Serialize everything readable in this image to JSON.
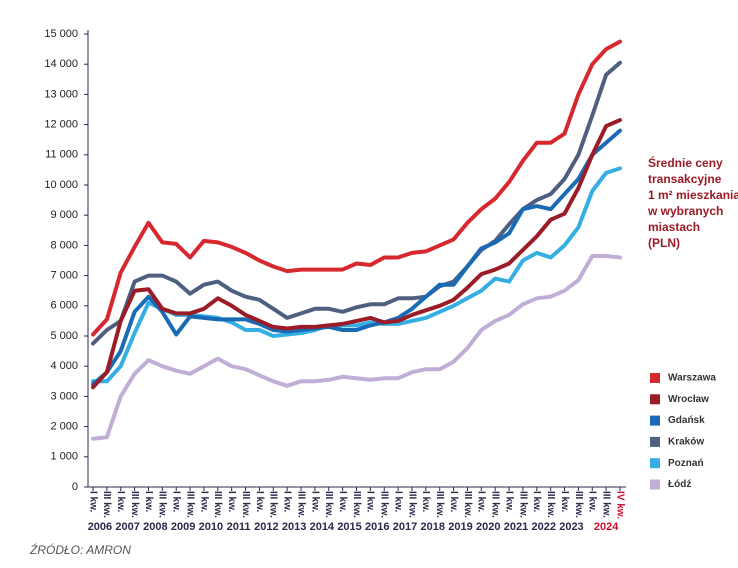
{
  "chart_data": {
    "type": "line",
    "categories": [
      "I kw.",
      "III kw.",
      "I kw.",
      "III kw.",
      "I kw.",
      "III kw.",
      "I kw.",
      "III kw.",
      "I kw.",
      "III kw.",
      "I kw.",
      "III kw.",
      "I kw.",
      "III kw.",
      "I kw.",
      "III kw.",
      "I kw.",
      "III kw.",
      "I kw.",
      "III kw.",
      "I kw.",
      "III kw.",
      "I kw.",
      "III kw.",
      "I kw.",
      "III kw.",
      "I kw.",
      "III kw.",
      "I kw.",
      "III kw.",
      "I kw.",
      "III kw.",
      "I kw.",
      "III kw.",
      "I kw.",
      "III kw.",
      "I kw.",
      "III kw.",
      "IV kw."
    ],
    "years": [
      "2006",
      "2007",
      "2008",
      "2009",
      "2010",
      "2011",
      "2012",
      "2013",
      "2014",
      "2015",
      "2016",
      "2017",
      "2018",
      "2019",
      "2020",
      "2021",
      "2022",
      "2023",
      "2024"
    ],
    "highlight_color": "#c8102e",
    "annotation": [
      "Średnie ceny",
      "transakcyjne",
      "1 m² mieszkania",
      "w wybranych",
      "miastach",
      "(PLN)"
    ],
    "source": "ŹRÓDŁO: AMRON",
    "ylim": [
      0,
      15000
    ],
    "yticks": [
      0,
      {
        "value": 1000,
        "label": "1 000"
      },
      {
        "value": 2000,
        "label": "2 000"
      },
      {
        "value": 3000,
        "label": "3 000"
      },
      {
        "value": 4000,
        "label": "4 000"
      },
      {
        "value": 5000,
        "label": "5 000"
      },
      {
        "value": 6000,
        "label": "6 000"
      },
      {
        "value": 7000,
        "label": "7 000"
      },
      {
        "value": 8000,
        "label": "8 000"
      },
      {
        "value": 9000,
        "label": "9 000"
      },
      {
        "value": 10000,
        "label": "10 000"
      },
      {
        "value": 11000,
        "label": "11 000"
      },
      {
        "value": 12000,
        "label": "12 000"
      },
      {
        "value": 13000,
        "label": "13 000"
      },
      {
        "value": 14000,
        "label": "14 000"
      },
      {
        "value": 15000,
        "label": "15 000"
      }
    ],
    "series": [
      {
        "name": "Warszawa",
        "color": "#d7282f",
        "values": [
          5050,
          5550,
          7100,
          7950,
          8750,
          8100,
          8050,
          7600,
          8150,
          8100,
          7950,
          7750,
          7500,
          7300,
          7150,
          7200,
          7200,
          7200,
          7200,
          7400,
          7350,
          7600,
          7600,
          7750,
          7800,
          8000,
          8200,
          8750,
          9200,
          9550,
          10100,
          10800,
          11400,
          11400,
          11700,
          13000,
          14000,
          14500,
          14750
        ]
      },
      {
        "name": "Wrocław",
        "color": "#9b1b26",
        "values": [
          3300,
          3800,
          5500,
          6500,
          6550,
          5900,
          5750,
          5750,
          5900,
          6250,
          6000,
          5700,
          5500,
          5300,
          5250,
          5300,
          5300,
          5350,
          5400,
          5500,
          5600,
          5450,
          5500,
          5700,
          5850,
          6000,
          6200,
          6600,
          7050,
          7200,
          7400,
          7850,
          8300,
          8850,
          9050,
          9900,
          11000,
          11950,
          12150
        ]
      },
      {
        "name": "Gdańsk",
        "color": "#1a6bb5",
        "values": [
          3400,
          3800,
          4500,
          5800,
          6300,
          5800,
          5050,
          5650,
          5600,
          5550,
          5550,
          5550,
          5400,
          5200,
          5150,
          5200,
          5250,
          5300,
          5200,
          5200,
          5350,
          5450,
          5600,
          5900,
          6300,
          6700,
          6700,
          7300,
          7900,
          8100,
          8400,
          9200,
          9300,
          9200,
          9700,
          10200,
          11000,
          11400,
          11800
        ]
      },
      {
        "name": "Kraków",
        "color": "#4f5f80",
        "values": [
          4750,
          5200,
          5500,
          6800,
          7000,
          7000,
          6800,
          6400,
          6700,
          6800,
          6500,
          6300,
          6200,
          5900,
          5600,
          5750,
          5900,
          5900,
          5800,
          5950,
          6050,
          6050,
          6250,
          6250,
          6300,
          6650,
          6800,
          7300,
          7850,
          8150,
          8700,
          9200,
          9500,
          9700,
          10200,
          11000,
          12300,
          13650,
          14050
        ]
      },
      {
        "name": "Poznań",
        "color": "#35aee4",
        "values": [
          3500,
          3500,
          4000,
          5100,
          6100,
          5900,
          5700,
          5700,
          5650,
          5600,
          5450,
          5200,
          5200,
          5000,
          5050,
          5100,
          5200,
          5350,
          5350,
          5350,
          5450,
          5400,
          5400,
          5500,
          5600,
          5800,
          6000,
          6250,
          6500,
          6900,
          6800,
          7500,
          7750,
          7600,
          8000,
          8600,
          9800,
          10400,
          10550
        ]
      },
      {
        "name": "Łódź",
        "color": "#c0aed6",
        "values": [
          1600,
          1650,
          3000,
          3750,
          4200,
          4000,
          3850,
          3750,
          4000,
          4250,
          4000,
          3900,
          3700,
          3500,
          3350,
          3500,
          3500,
          3550,
          3650,
          3600,
          3550,
          3600,
          3600,
          3800,
          3900,
          3900,
          4150,
          4600,
          5200,
          5500,
          5700,
          6050,
          6250,
          6300,
          6500,
          6850,
          7650,
          7650,
          7600
        ]
      }
    ]
  }
}
